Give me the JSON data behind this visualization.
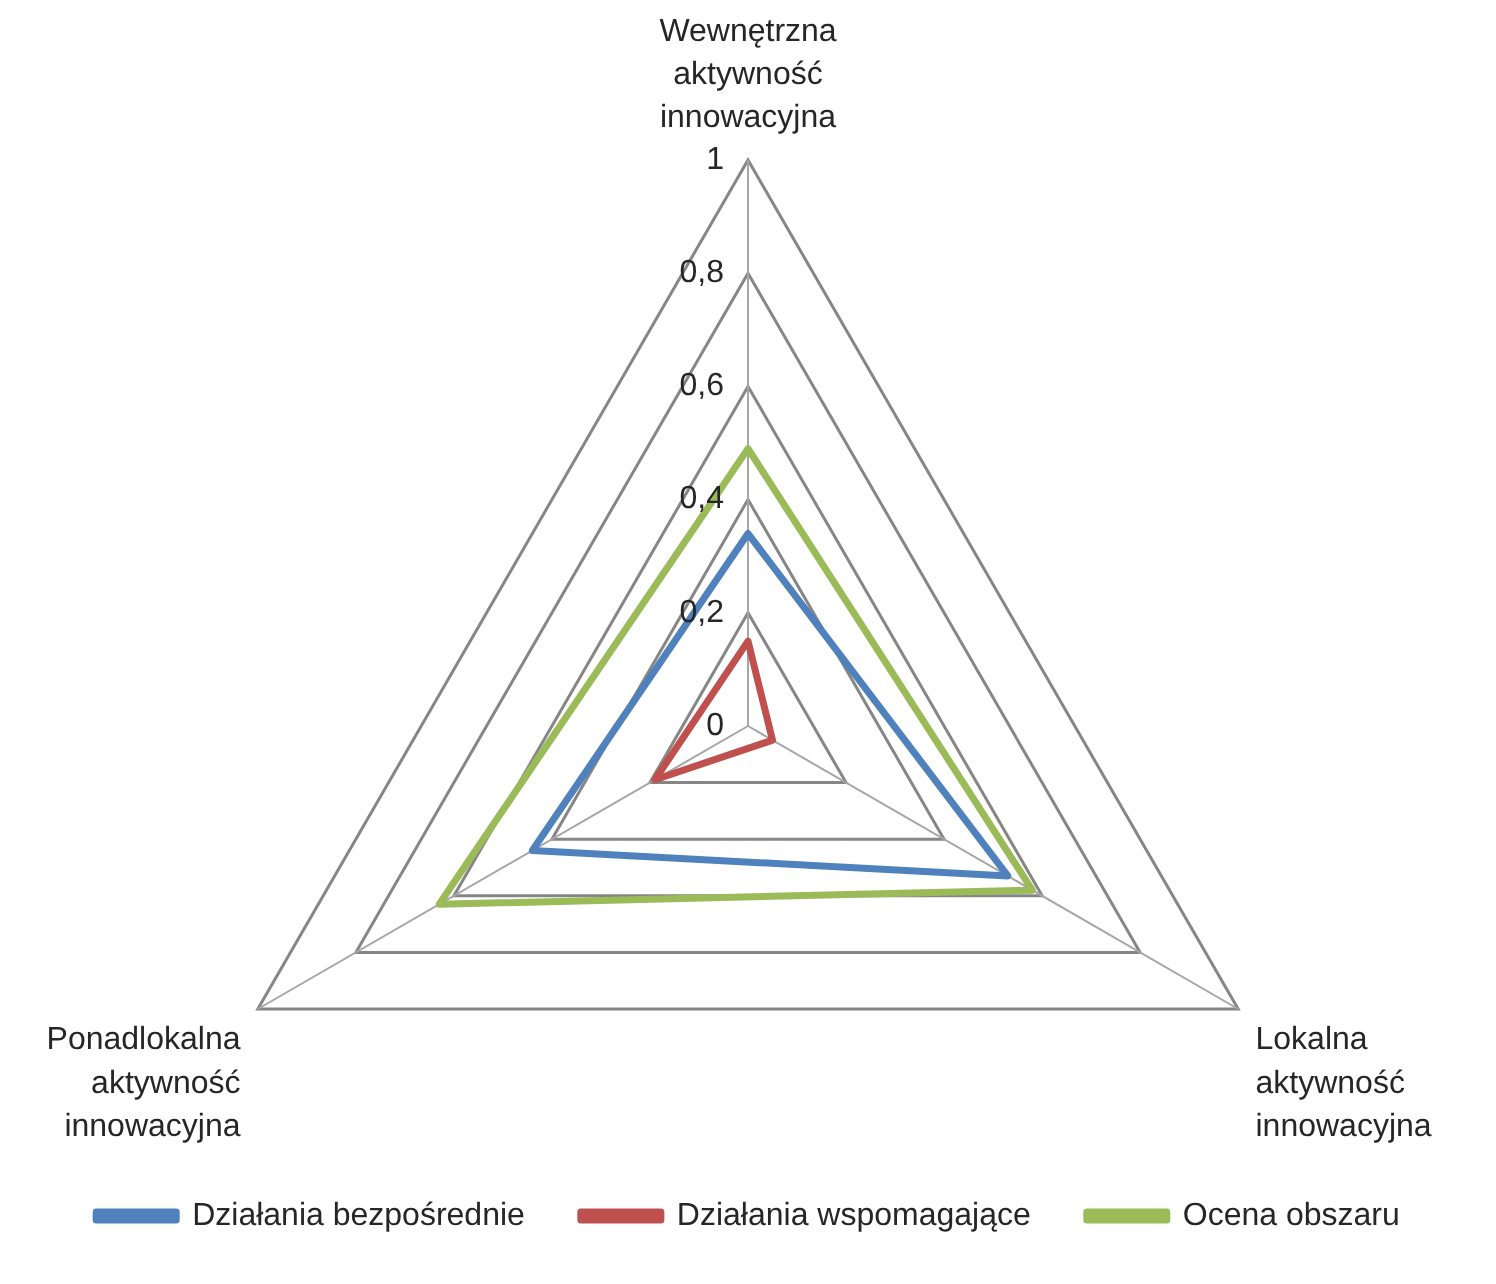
{
  "chart_data": {
    "type": "radar",
    "categories": [
      "Wewnętrzna aktywność innowacyjna",
      "Lokalna aktywność innowacyjna",
      "Ponadlokalna aktywność innowacyjna"
    ],
    "series": [
      {
        "name": "Działania bezpośrednie",
        "color": "#4f81bd",
        "values": [
          0.34,
          0.53,
          0.44
        ]
      },
      {
        "name": "Działania wspomagające",
        "color": "#c0504d",
        "values": [
          0.15,
          0.05,
          0.19
        ]
      },
      {
        "name": "Ocena obszaru",
        "color": "#9bbb59",
        "values": [
          0.49,
          0.58,
          0.63
        ]
      }
    ],
    "ylim": [
      0,
      1
    ],
    "yticks": [
      0,
      {
        "value": 0.2,
        "label": "0,2"
      },
      {
        "value": 0.4,
        "label": "0,4"
      },
      {
        "value": 0.6,
        "label": "0,6"
      },
      {
        "value": 0.8,
        "label": "0,8"
      },
      1
    ],
    "grid": true,
    "legend": "bottom",
    "marker": "none"
  }
}
